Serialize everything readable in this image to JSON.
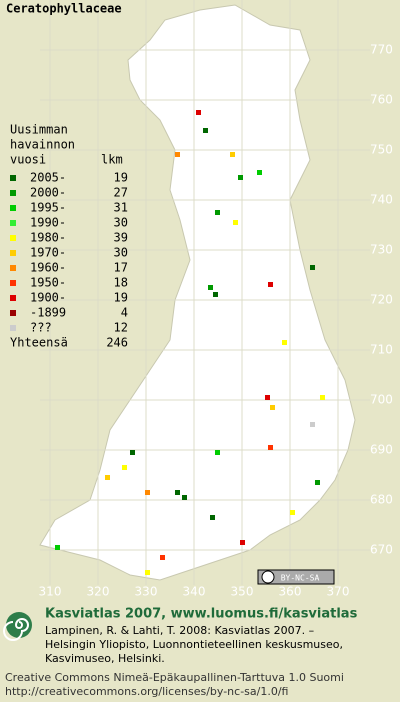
{
  "title": "Ceratophyllaceae",
  "legend": {
    "heading": [
      "Uusimman",
      "havainnon",
      "vuosi"
    ],
    "count_heading": "lkm",
    "rows": [
      {
        "label": "2005-",
        "count": 19,
        "color": "#006600"
      },
      {
        "label": "2000-",
        "count": 27,
        "color": "#009900"
      },
      {
        "label": "1995-",
        "count": 31,
        "color": "#00cc00"
      },
      {
        "label": "1990-",
        "count": 30,
        "color": "#33ee33"
      },
      {
        "label": "1980-",
        "count": 39,
        "color": "#ffff00"
      },
      {
        "label": "1970-",
        "count": 30,
        "color": "#ffcc00"
      },
      {
        "label": "1960-",
        "count": 17,
        "color": "#ff8800"
      },
      {
        "label": "1950-",
        "count": 18,
        "color": "#ff3300"
      },
      {
        "label": "1900-",
        "count": 19,
        "color": "#dd0000"
      },
      {
        "label": "-1899",
        "count": 4,
        "color": "#990000"
      },
      {
        "label": "???",
        "count": 12,
        "color": "#cccccc"
      }
    ],
    "total_label": "Yhteensä",
    "total": 246
  },
  "grid": {
    "northing": [
      770,
      760,
      750,
      740,
      730,
      720,
      710,
      700,
      690,
      680,
      670
    ],
    "easting": [
      310,
      320,
      330,
      340,
      350,
      360,
      370
    ]
  },
  "badge": "BY-NC-SA",
  "footer": {
    "headline": "Kasviatlas 2007, www.luomus.fi/kasviatlas",
    "citation": [
      "Lampinen, R. & Lahti, T. 2008: Kasviatlas 2007. –",
      "Helsingin Yliopisto, Luonnontieteellinen keskusmuseo,",
      "Kasvimuseo, Helsinki."
    ],
    "license": [
      "Creative Commons Nimeä-Epäkaupallinen-Tarttuva 1.0 Suomi",
      "http://creativecommons.org/licenses/by-nc-sa/1.0/fi"
    ]
  }
}
